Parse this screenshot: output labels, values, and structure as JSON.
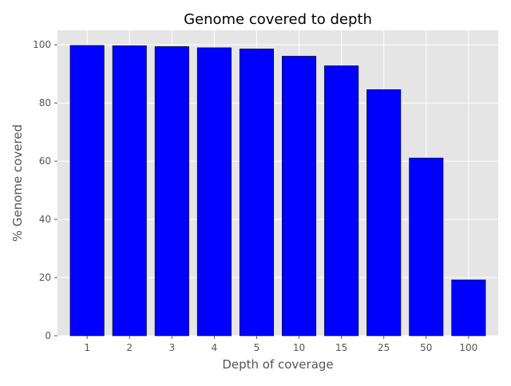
{
  "chart_data": {
    "type": "bar",
    "title": "Genome covered to depth",
    "xlabel": "Depth of coverage",
    "ylabel": "% Genome covered",
    "categories": [
      "1",
      "2",
      "3",
      "4",
      "5",
      "10",
      "15",
      "25",
      "50",
      "100"
    ],
    "values": [
      99.8,
      99.7,
      99.4,
      99.0,
      98.6,
      96.1,
      92.8,
      84.6,
      61.1,
      19.2
    ],
    "ylim": [
      0,
      105
    ],
    "yticks": [
      0,
      20,
      40,
      60,
      80,
      100
    ],
    "grid": true,
    "bar_color": "#0000ff",
    "bar_edge_color": "#000000",
    "plot_background": "#e5e5e5",
    "grid_color": "#ffffff"
  }
}
